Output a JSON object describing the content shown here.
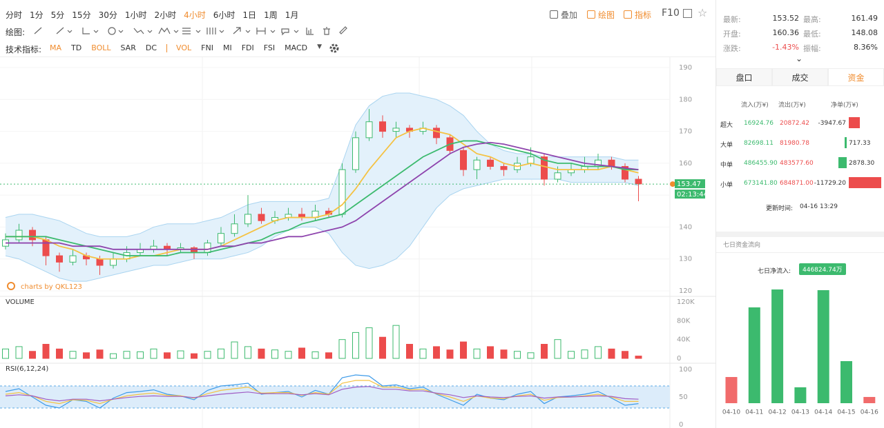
{
  "toolbar": {
    "periods": [
      "分时",
      "1分",
      "5分",
      "15分",
      "30分",
      "1小时",
      "2小时",
      "4小时",
      "6小时",
      "1日",
      "1周",
      "1月"
    ],
    "active_period": 7,
    "tools": [
      "叠加",
      "绘图",
      "指标"
    ],
    "f10": "F10",
    "draw_label": "绘图:",
    "indicator_label": "技术指标:",
    "indicators": [
      "MA",
      "TD",
      "BOLL",
      "SAR",
      "DC",
      "VOL",
      "FNI",
      "MI",
      "FDI",
      "FSI",
      "MACD"
    ],
    "active_indicators": [
      0,
      2,
      5
    ]
  },
  "kline": {
    "up_color": "#3cba6e",
    "down_color": "#ec4c4c",
    "ylim": [
      120,
      190
    ],
    "yticks": [
      120,
      130,
      140,
      150,
      160,
      170,
      180,
      190
    ],
    "grid": true,
    "current_price": 153.47,
    "countdown": "02:13:44",
    "watermark": "charts by QKL123",
    "candles": [
      [
        134,
        138,
        133,
        136
      ],
      [
        136,
        141,
        135,
        139
      ],
      [
        139,
        140,
        134,
        136
      ],
      [
        136,
        137,
        128,
        131
      ],
      [
        131,
        132,
        126,
        129
      ],
      [
        129,
        133,
        128,
        131
      ],
      [
        131,
        132,
        128,
        130
      ],
      [
        130,
        131,
        125,
        128
      ],
      [
        128,
        132,
        127,
        130
      ],
      [
        130,
        134,
        129,
        132
      ],
      [
        132,
        135,
        131,
        133
      ],
      [
        133,
        136,
        132,
        134
      ],
      [
        134,
        135,
        131,
        133
      ],
      [
        133,
        135,
        132,
        133.5
      ],
      [
        133.5,
        134,
        130,
        132
      ],
      [
        132,
        136,
        131,
        135
      ],
      [
        135,
        140,
        134,
        138
      ],
      [
        138,
        144,
        137,
        141
      ],
      [
        141,
        150,
        140,
        144
      ],
      [
        144,
        146,
        141,
        142
      ],
      [
        142,
        145,
        141,
        143
      ],
      [
        143,
        146,
        142,
        144
      ],
      [
        144,
        146,
        142,
        143
      ],
      [
        143,
        147,
        142,
        145
      ],
      [
        145,
        146,
        143,
        144
      ],
      [
        144,
        160,
        143,
        158
      ],
      [
        158,
        170,
        157,
        168
      ],
      [
        168,
        177,
        167,
        173
      ],
      [
        173,
        175,
        168,
        170
      ],
      [
        170,
        173,
        168,
        171
      ],
      [
        171,
        172,
        168,
        170
      ],
      [
        170,
        173,
        169,
        171
      ],
      [
        171,
        172,
        166,
        168
      ],
      [
        168,
        169,
        163,
        164
      ],
      [
        164,
        165,
        156,
        158
      ],
      [
        158,
        162,
        155,
        161
      ],
      [
        161,
        162,
        158,
        159
      ],
      [
        159,
        160,
        156,
        158
      ],
      [
        158,
        162,
        157,
        160
      ],
      [
        160,
        165,
        159,
        162
      ],
      [
        162,
        163,
        153,
        155
      ],
      [
        155,
        159,
        154,
        157
      ],
      [
        157,
        160,
        156,
        158
      ],
      [
        158,
        162,
        157,
        159
      ],
      [
        159,
        163,
        158,
        161
      ],
      [
        161,
        162,
        158,
        159
      ],
      [
        159,
        160,
        154,
        155
      ],
      [
        155,
        156,
        148.08,
        153.52
      ]
    ],
    "ma": [
      {
        "color": "#f5c242",
        "values": [
          137,
          137,
          137,
          136,
          134,
          133,
          131,
          130,
          130,
          130,
          131,
          131,
          132,
          133,
          133,
          133,
          134,
          136,
          138,
          140,
          142,
          143,
          143,
          143,
          144,
          147,
          152,
          158,
          163,
          168,
          170,
          171,
          170,
          169,
          166,
          163,
          162,
          160,
          159,
          160,
          159,
          158,
          158,
          158,
          158,
          159,
          158,
          157
        ]
      },
      {
        "color": "#3cba6e",
        "values": [
          137,
          137,
          137,
          137,
          136,
          135,
          134,
          133,
          132,
          131,
          131,
          131,
          131,
          132,
          132,
          132,
          133,
          134,
          135,
          136,
          138,
          139,
          141,
          142,
          143,
          144,
          147,
          150,
          153,
          156,
          159,
          162,
          164,
          166,
          167,
          167,
          166,
          165,
          164,
          163,
          161,
          160,
          160,
          159,
          159,
          159,
          158,
          158
        ]
      },
      {
        "color": "#8e44ad",
        "values": [
          135,
          135,
          135,
          135,
          135,
          134,
          134,
          134,
          133,
          133,
          133,
          133,
          133,
          133,
          133,
          133,
          134,
          134,
          135,
          135,
          136,
          137,
          137,
          138,
          139,
          140,
          142,
          145,
          148,
          151,
          154,
          157,
          160,
          163,
          165,
          166,
          166.5,
          166,
          165,
          164,
          163,
          162,
          161,
          160,
          159.5,
          159,
          158.5,
          158
        ]
      }
    ],
    "boll": {
      "color": "#a9d4f0",
      "fill": "#e3f1fb",
      "upper": [
        143,
        144,
        144,
        143,
        142,
        140,
        138,
        137,
        137,
        137,
        138,
        140,
        141,
        141,
        141,
        142,
        143,
        145,
        147,
        148,
        148,
        148,
        148,
        148,
        149,
        160,
        172,
        178,
        181,
        182,
        182,
        181,
        180,
        178,
        175,
        170,
        166,
        164,
        163,
        163,
        162,
        162,
        162,
        162,
        162,
        162,
        161,
        161
      ],
      "lower": [
        131,
        130,
        128,
        126,
        124,
        123,
        123,
        124,
        125,
        126,
        127,
        128,
        128,
        129,
        130,
        130,
        130,
        131,
        132,
        134,
        137,
        139,
        140,
        140,
        138,
        132,
        128,
        127,
        128,
        130,
        134,
        140,
        146,
        150,
        152,
        153,
        154,
        155,
        155,
        155,
        155,
        155,
        154,
        154,
        154,
        154,
        154,
        153
      ]
    }
  },
  "volume": {
    "title": "VOLUME",
    "ylim": [
      0,
      120000
    ],
    "yticks": [
      0,
      {
        "value": 40000,
        "label": "40K"
      },
      {
        "value": 80000,
        "label": "80K"
      },
      {
        "value": 120000,
        "label": "120K"
      }
    ],
    "values": [
      20000,
      25000,
      15000,
      30000,
      20000,
      15000,
      12000,
      18000,
      10000,
      15000,
      14000,
      20000,
      12000,
      16000,
      10000,
      15000,
      20000,
      35000,
      25000,
      20000,
      18000,
      15000,
      22000,
      14000,
      12000,
      40000,
      55000,
      65000,
      45000,
      70000,
      30000,
      20000,
      25000,
      18000,
      35000,
      20000,
      25000,
      18000,
      15000,
      12000,
      30000,
      40000,
      15000,
      18000,
      25000,
      20000,
      15000,
      5000
    ]
  },
  "rsi": {
    "title": "RSI(6,12,24)",
    "ylim": [
      0,
      100
    ],
    "yticks": [
      0,
      50,
      100
    ],
    "bands": [
      30,
      70
    ],
    "band_color": "#dcecfa",
    "series": [
      {
        "color": "#3d9be9",
        "values": [
          60,
          65,
          50,
          35,
          30,
          45,
          42,
          30,
          48,
          58,
          60,
          63,
          55,
          52,
          45,
          62,
          70,
          72,
          75,
          55,
          58,
          60,
          50,
          62,
          55,
          85,
          90,
          88,
          70,
          72,
          65,
          68,
          55,
          45,
          35,
          55,
          48,
          45,
          55,
          60,
          38,
          50,
          52,
          55,
          60,
          48,
          35,
          38
        ]
      },
      {
        "color": "#f5c242",
        "values": [
          55,
          58,
          52,
          42,
          38,
          45,
          44,
          38,
          46,
          52,
          55,
          57,
          53,
          52,
          48,
          56,
          62,
          65,
          68,
          57,
          58,
          58,
          53,
          58,
          55,
          75,
          80,
          80,
          68,
          68,
          63,
          64,
          56,
          50,
          42,
          52,
          48,
          47,
          52,
          55,
          44,
          49,
          50,
          52,
          55,
          50,
          42,
          42
        ]
      },
      {
        "color": "#a05cc4",
        "values": [
          52,
          54,
          52,
          46,
          43,
          46,
          46,
          43,
          46,
          49,
          51,
          52,
          51,
          51,
          49,
          52,
          55,
          57,
          59,
          56,
          56,
          56,
          54,
          56,
          54,
          64,
          68,
          69,
          64,
          64,
          61,
          61,
          57,
          54,
          49,
          52,
          50,
          49,
          51,
          52,
          48,
          50,
          50,
          51,
          52,
          51,
          47,
          46
        ]
      }
    ]
  },
  "stats": [
    [
      {
        "label": "最新:",
        "value": "153.52"
      },
      {
        "label": "最高:",
        "value": "161.49"
      }
    ],
    [
      {
        "label": "开盘:",
        "value": "160.36"
      },
      {
        "label": "最低:",
        "value": "148.08"
      }
    ],
    [
      {
        "label": "涨跌:",
        "value": "-1.43%"
      },
      {
        "label": "振幅:",
        "value": "8.36%"
      }
    ]
  ],
  "tabs": [
    "盘口",
    "成交",
    "资金"
  ],
  "active_tab": 2,
  "flow": {
    "headers": [
      "流入(万¥)",
      "流出(万¥)",
      "净单(万¥)"
    ],
    "rows": [
      {
        "name": "超大",
        "in": "16924.76",
        "out": "20872.42",
        "net": {
          "value": -3947.67,
          "label": "-3947.67"
        }
      },
      {
        "name": "大单",
        "in": "82698.11",
        "out": "81980.78",
        "net": {
          "value": 717.33,
          "label": "717.33"
        }
      },
      {
        "name": "中单",
        "in": "486455.90",
        "out": "483577.60",
        "net": {
          "value": 2878.3,
          "label": "2878.30"
        }
      },
      {
        "name": "小单",
        "in": "673141.80",
        "out": "684871.00",
        "net": {
          "value": -11729.2,
          "label": "-11729.20"
        }
      }
    ],
    "update_label": "更新时间:",
    "update_time": "04-16 13:29"
  },
  "seven_day": {
    "title": "七日资金流向",
    "net_label": "七日净流入:",
    "net_value": "446824.74万",
    "categories": [
      "04-10",
      "04-11",
      "04-12",
      "04-13",
      "04-14",
      "04-15",
      "04-16"
    ],
    "values": [
      -33600,
      123000,
      146000,
      20400,
      145100,
      54000,
      -8000
    ],
    "up_color": "#3cba6e",
    "down_color": "#f16b6b"
  }
}
